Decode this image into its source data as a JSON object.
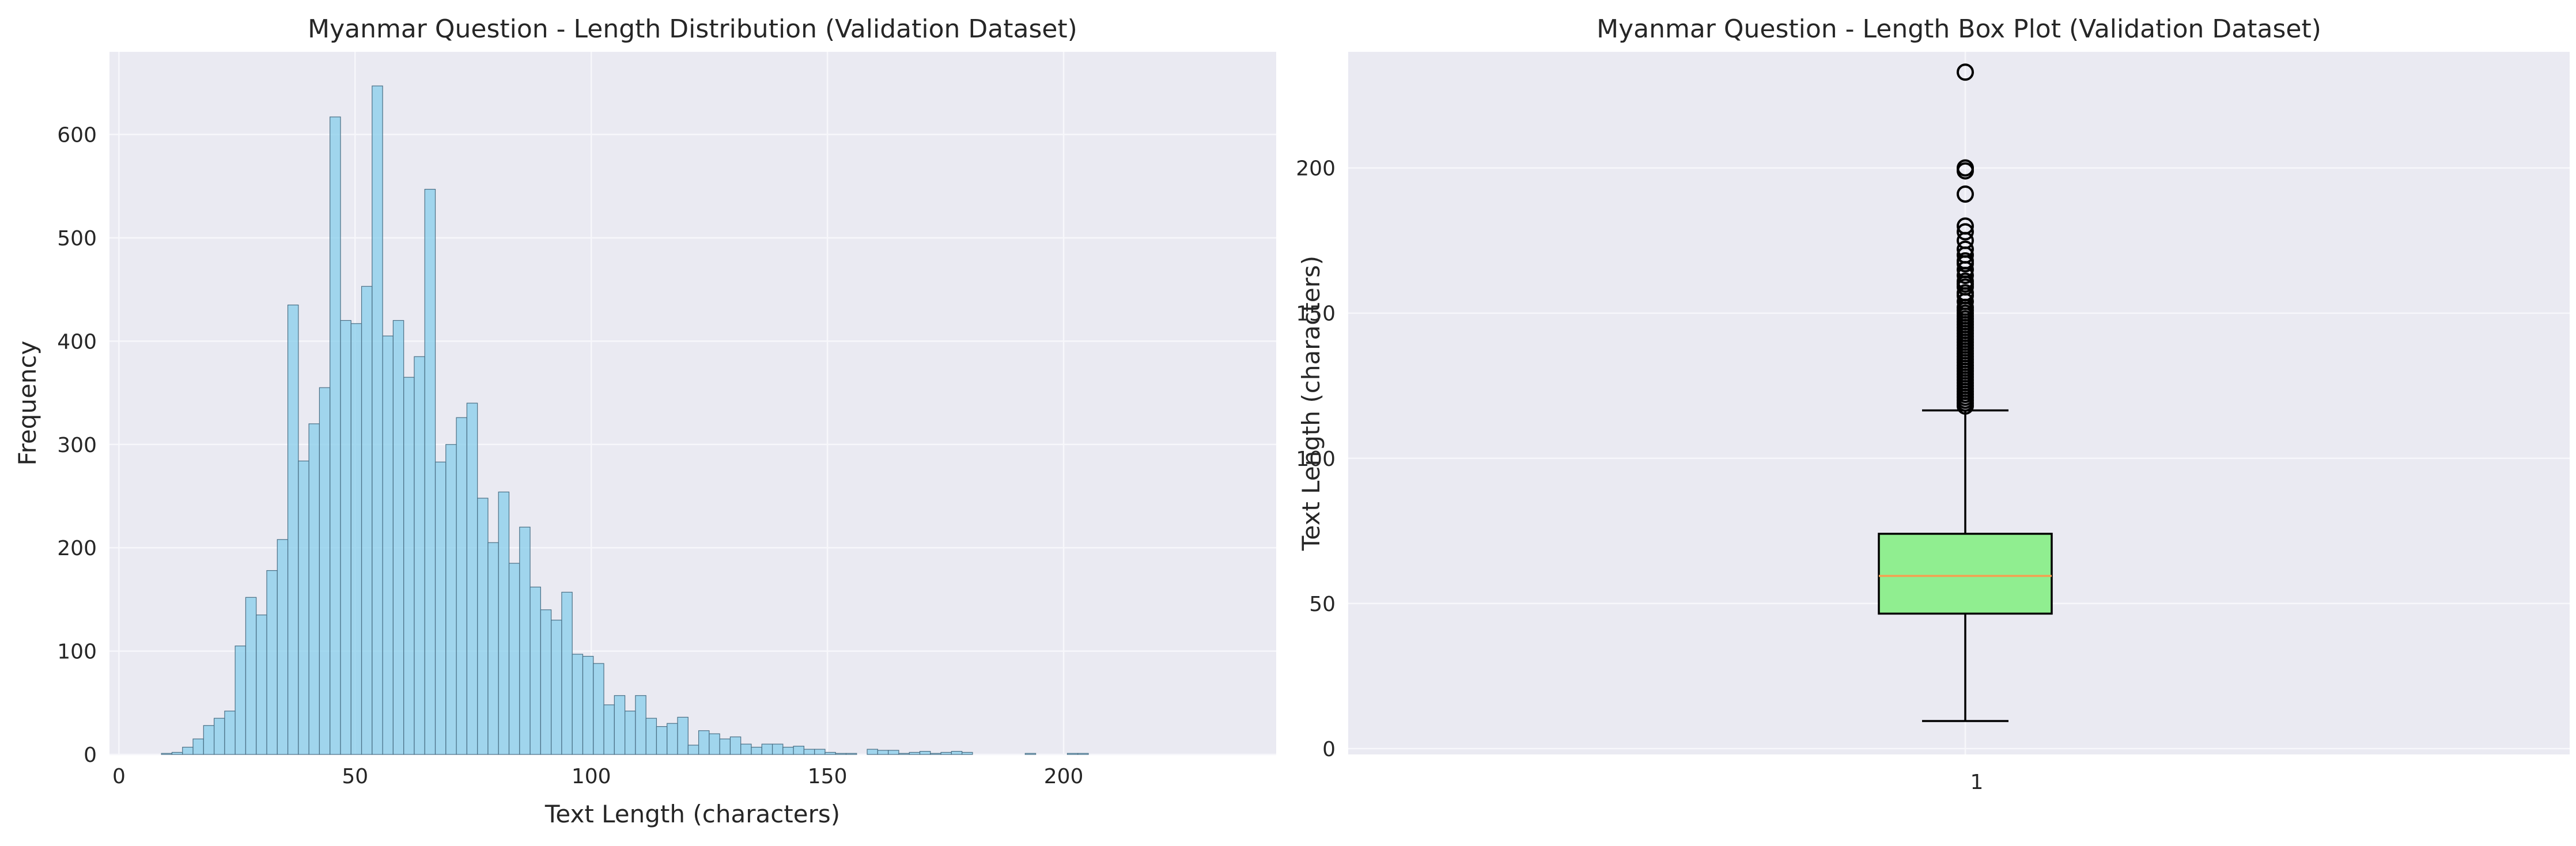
{
  "chart_data": [
    {
      "type": "bar",
      "title": "Myanmar Question - Length Distribution (Validation Dataset)",
      "xlabel": "Text Length (characters)",
      "ylabel": "Frequency",
      "xlim": [
        -2,
        245
      ],
      "ylim": [
        0,
        680
      ],
      "xticks": [
        0,
        50,
        100,
        150,
        200
      ],
      "yticks": [
        0,
        100,
        200,
        300,
        400,
        500,
        600
      ],
      "grid": true,
      "bin_start": 9,
      "bin_width": 2.23,
      "bin_counts": [
        1,
        2,
        7,
        15,
        28,
        35,
        42,
        105,
        152,
        135,
        178,
        208,
        435,
        284,
        320,
        355,
        617,
        420,
        417,
        453,
        647,
        405,
        420,
        365,
        385,
        547,
        283,
        300,
        326,
        340,
        248,
        205,
        254,
        185,
        220,
        162,
        140,
        130,
        157,
        97,
        95,
        88,
        48,
        57,
        42,
        57,
        35,
        27,
        30,
        36,
        9,
        23,
        20,
        15,
        17,
        10,
        7,
        10,
        10,
        7,
        8,
        5,
        5,
        2,
        1,
        1,
        0,
        5,
        4,
        4,
        1,
        2,
        3,
        1,
        2,
        3,
        2,
        0,
        0,
        0,
        0,
        0,
        1,
        0,
        0,
        0,
        1,
        1,
        0,
        0,
        0,
        0,
        0,
        0,
        0,
        0,
        0,
        0,
        0,
        0
      ]
    },
    {
      "type": "box",
      "title": "Myanmar Question - Length Box Plot (Validation Dataset)",
      "xlabel": "",
      "ylabel": "Text Length (characters)",
      "ylim": [
        -2,
        240
      ],
      "yticks": [
        0,
        50,
        100,
        150,
        200
      ],
      "xtick_label": "1",
      "grid": true,
      "stats": {
        "whisker_low": 9.5,
        "q1": 46.5,
        "median": 59.5,
        "q3": 74,
        "whisker_high": 116.5
      },
      "fliers": [
        118,
        119,
        120,
        121,
        122,
        123,
        124,
        125,
        126,
        127,
        128,
        129,
        130,
        131,
        132,
        133,
        134,
        135,
        136,
        137,
        138,
        139,
        140,
        141,
        142,
        143,
        144,
        145,
        146,
        147,
        148,
        149,
        150,
        151,
        152,
        154,
        156,
        157,
        159,
        160,
        161,
        163,
        165,
        167,
        168,
        170,
        172,
        175,
        178,
        180,
        191,
        199,
        200,
        233
      ]
    }
  ]
}
